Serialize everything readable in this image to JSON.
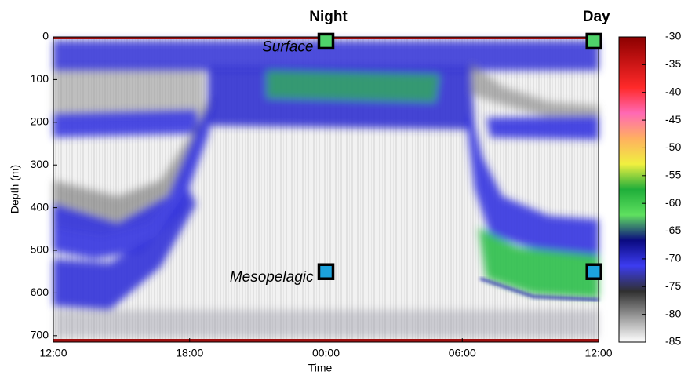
{
  "chart_data": {
    "type": "echogram",
    "x_label": "Time",
    "y_label": "Depth (m)",
    "xlim": [
      0,
      24
    ],
    "xticks": [
      {
        "value": 0,
        "label": "12:00"
      },
      {
        "value": 6,
        "label": "18:00"
      },
      {
        "value": 12,
        "label": "00:00"
      },
      {
        "value": 18,
        "label": "06:00"
      },
      {
        "value": 24,
        "label": "12:00"
      }
    ],
    "ylim": [
      0,
      715
    ],
    "y_inverted": true,
    "yticks": [
      0,
      100,
      200,
      300,
      400,
      500,
      600,
      700
    ],
    "column_labels": [
      "Night",
      "Day"
    ],
    "series": [
      {
        "name": "Surface",
        "color": "#4fd36a",
        "x": [
          12,
          23.8
        ],
        "values": [
          10,
          10
        ]
      },
      {
        "name": "Mesopelagic",
        "color": "#1ca3dd",
        "x": [
          12,
          23.8
        ],
        "values": [
          550,
          550
        ]
      }
    ],
    "colorbar": {
      "clim": [
        -85,
        -30
      ],
      "ticks": [
        -30,
        -35,
        -40,
        -45,
        -50,
        -55,
        -60,
        -65,
        -70,
        -75,
        -80,
        -85
      ],
      "colormap": [
        "#8b0000",
        "#c81414",
        "#ff2a2a",
        "#ff69b4",
        "#ffb060",
        "#f0f040",
        "#1fae3a",
        "#5fe05f",
        "#0a0a80",
        "#3c3cf0",
        "#303030",
        "#9a9a9a",
        "#ffffff"
      ]
    }
  }
}
